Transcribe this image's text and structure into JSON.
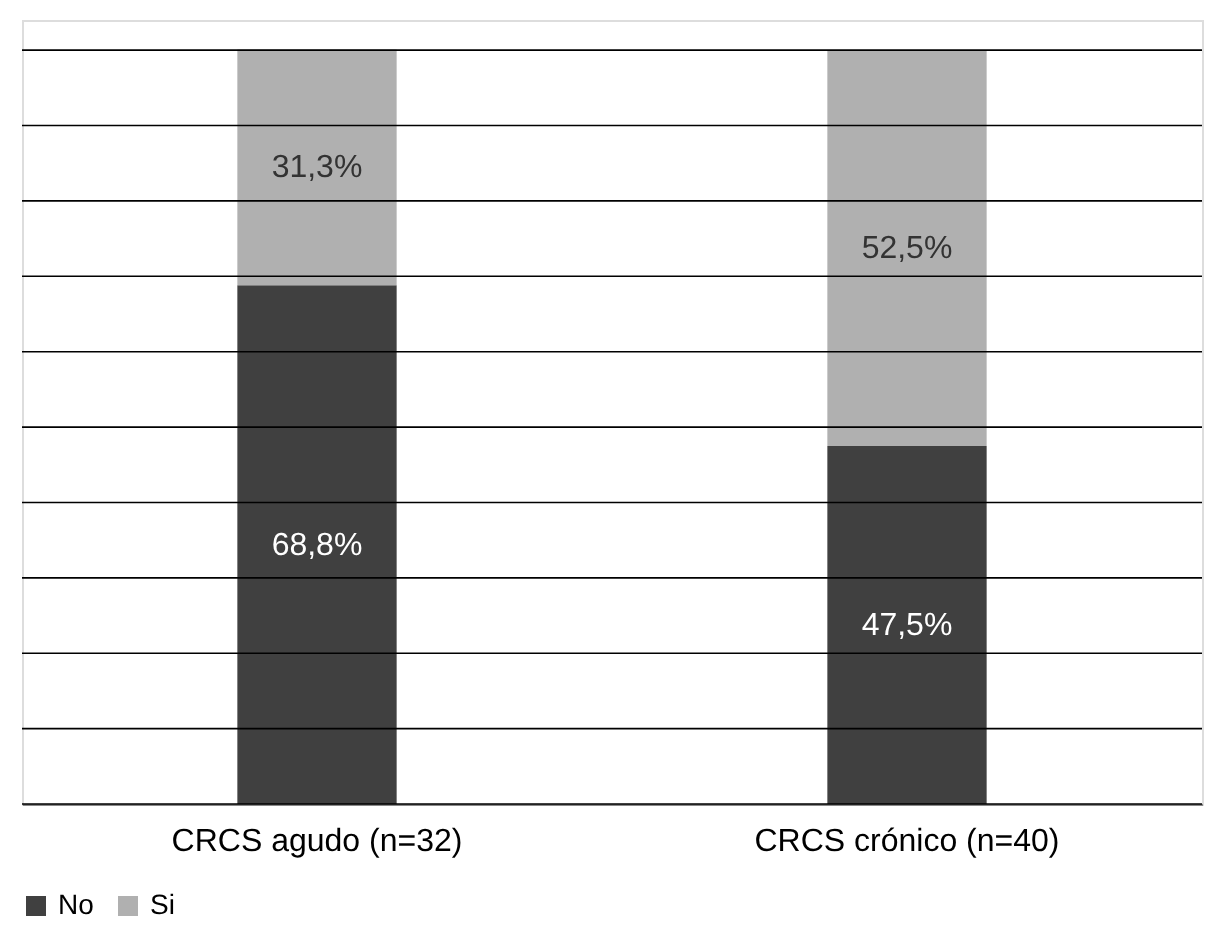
{
  "chart_data": {
    "type": "bar",
    "stacked": true,
    "categories": [
      "CRCS agudo (n=32)",
      "CRCS crónico (n=40)"
    ],
    "series": [
      {
        "name": "No",
        "color": "#404040",
        "values": [
          68.8,
          47.5
        ],
        "value_labels": [
          "68,8%",
          "47,5%"
        ]
      },
      {
        "name": "Si",
        "color": "#b0b0b0",
        "values": [
          31.3,
          52.5
        ],
        "value_labels": [
          "31,3%",
          "52,5%"
        ]
      }
    ],
    "ylim": [
      0,
      104
    ],
    "yticks": [
      {
        "value": 0,
        "label": null
      },
      {
        "value": 10,
        "label": null
      },
      {
        "value": 20,
        "label": null
      },
      {
        "value": 30,
        "label": null
      },
      {
        "value": 40,
        "label": null
      },
      {
        "value": 50,
        "label": null
      },
      {
        "value": 60,
        "label": null
      },
      {
        "value": 70,
        "label": null
      },
      {
        "value": 80,
        "label": null
      },
      {
        "value": 90,
        "label": null
      },
      {
        "value": 100,
        "label": null
      }
    ],
    "grid": "y",
    "legend": "bottom",
    "tick_labels": "x"
  }
}
